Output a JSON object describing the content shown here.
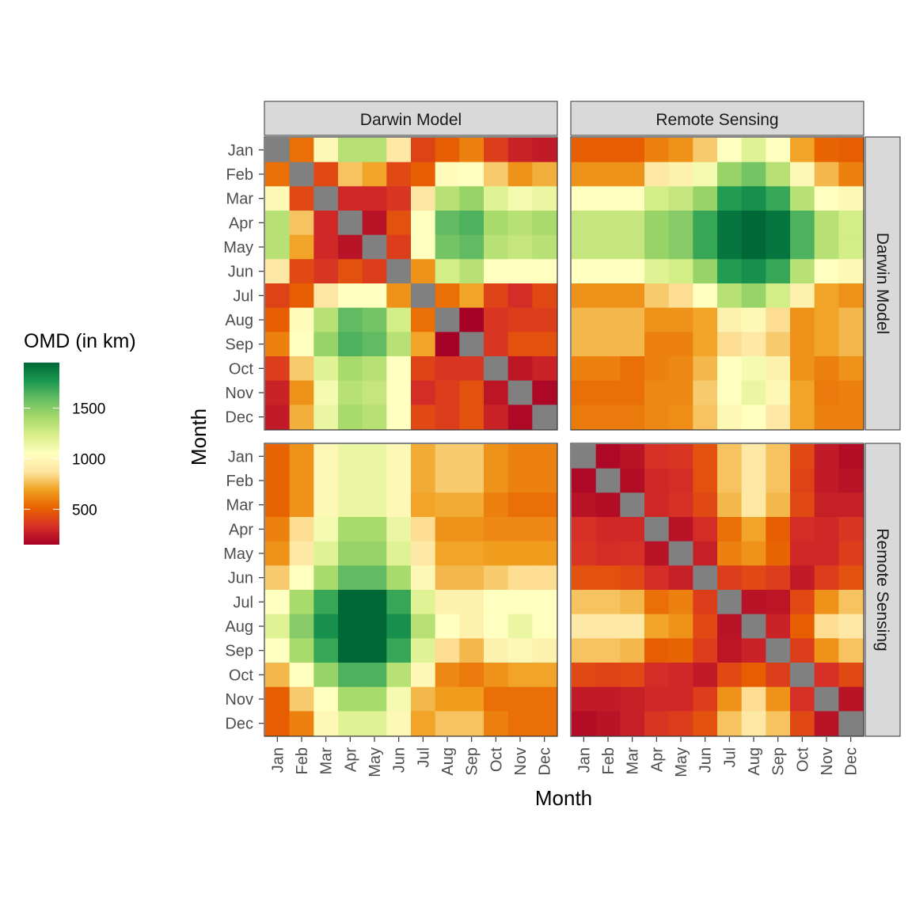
{
  "chart_data": {
    "type": "heatmap",
    "xlabel": "Month",
    "ylabel": "Month",
    "months": [
      "Jan",
      "Feb",
      "Mar",
      "Apr",
      "May",
      "Jun",
      "Jul",
      "Aug",
      "Sep",
      "Oct",
      "Nov",
      "Dec"
    ],
    "col_facets": [
      "Darwin Model",
      "Remote Sensing"
    ],
    "row_facets": [
      "Darwin Model",
      "Remote Sensing"
    ],
    "legend": {
      "title": "OMD (in km)",
      "breaks": [
        500,
        1000,
        1500
      ],
      "limits": [
        150,
        1950
      ],
      "colors": [
        "#a50026",
        "#d73027",
        "#e86100",
        "#f0a020",
        "#fde5a0",
        "#ffffbf",
        "#d9ef8b",
        "#a6d96a",
        "#66bd63",
        "#1a9850",
        "#006837"
      ],
      "placement": "left"
    },
    "missing_color": "#808080",
    "panels": [
      {
        "row": "Darwin Model",
        "col": "Darwin Model",
        "values": [
          [
            null,
            550,
            1000,
            1350,
            1350,
            900,
            400,
            500,
            600,
            380,
            280,
            250
          ],
          [
            550,
            null,
            420,
            780,
            700,
            420,
            500,
            1020,
            1050,
            800,
            650,
            730
          ],
          [
            1000,
            420,
            null,
            300,
            300,
            350,
            880,
            1350,
            1450,
            1200,
            1100,
            1150
          ],
          [
            1350,
            780,
            300,
            null,
            220,
            450,
            1050,
            1600,
            1650,
            1400,
            1350,
            1400
          ],
          [
            1350,
            700,
            300,
            220,
            null,
            380,
            1050,
            1550,
            1600,
            1350,
            1300,
            1350
          ],
          [
            900,
            420,
            350,
            450,
            380,
            null,
            650,
            1250,
            1350,
            1050,
            1050,
            1050
          ],
          [
            400,
            500,
            880,
            1050,
            1050,
            650,
            null,
            550,
            700,
            400,
            320,
            420
          ],
          [
            500,
            1020,
            1350,
            1600,
            1550,
            1250,
            550,
            null,
            150,
            350,
            380,
            380
          ],
          [
            600,
            1050,
            1450,
            1650,
            1600,
            1350,
            700,
            150,
            null,
            350,
            450,
            450
          ],
          [
            380,
            800,
            1200,
            1400,
            1350,
            1050,
            400,
            350,
            350,
            null,
            230,
            280
          ],
          [
            280,
            650,
            1100,
            1350,
            1300,
            1050,
            320,
            380,
            450,
            230,
            null,
            180
          ],
          [
            250,
            730,
            1150,
            1400,
            1350,
            1050,
            420,
            380,
            450,
            280,
            180,
            null
          ]
        ]
      },
      {
        "row": "Darwin Model",
        "col": "Remote Sensing",
        "values": [
          [
            500,
            500,
            500,
            600,
            650,
            800,
            1050,
            1200,
            1050,
            700,
            520,
            500
          ],
          [
            650,
            650,
            650,
            900,
            950,
            1100,
            1450,
            1550,
            1350,
            1000,
            750,
            600
          ],
          [
            1050,
            1050,
            1050,
            1250,
            1300,
            1450,
            1750,
            1800,
            1700,
            1350,
            1050,
            1000
          ],
          [
            1300,
            1300,
            1300,
            1450,
            1500,
            1700,
            1900,
            1950,
            1900,
            1650,
            1350,
            1250
          ],
          [
            1300,
            1300,
            1300,
            1450,
            1500,
            1700,
            1900,
            1950,
            1900,
            1650,
            1350,
            1250
          ],
          [
            1050,
            1050,
            1050,
            1200,
            1250,
            1450,
            1750,
            1800,
            1700,
            1350,
            1050,
            1000
          ],
          [
            650,
            650,
            650,
            800,
            850,
            1050,
            1350,
            1450,
            1250,
            950,
            700,
            650
          ],
          [
            750,
            750,
            750,
            650,
            650,
            700,
            950,
            1000,
            850,
            650,
            700,
            750
          ],
          [
            750,
            750,
            750,
            600,
            600,
            700,
            850,
            900,
            800,
            650,
            700,
            750
          ],
          [
            600,
            600,
            550,
            600,
            620,
            750,
            1050,
            1100,
            950,
            650,
            600,
            650
          ],
          [
            550,
            550,
            550,
            620,
            620,
            800,
            1050,
            1150,
            1000,
            700,
            580,
            600
          ],
          [
            580,
            580,
            580,
            620,
            640,
            780,
            1000,
            1050,
            900,
            700,
            600,
            600
          ]
        ]
      },
      {
        "row": "Remote Sensing",
        "col": "Darwin Model",
        "values": [
          [
            520,
            650,
            1000,
            1150,
            1150,
            1000,
            720,
            800,
            800,
            650,
            600,
            600
          ],
          [
            520,
            650,
            1000,
            1150,
            1150,
            1000,
            720,
            800,
            800,
            650,
            600,
            600
          ],
          [
            520,
            650,
            1000,
            1150,
            1150,
            1000,
            700,
            720,
            720,
            600,
            550,
            550
          ],
          [
            600,
            850,
            1100,
            1400,
            1400,
            1150,
            850,
            650,
            650,
            620,
            620,
            620
          ],
          [
            650,
            900,
            1200,
            1450,
            1450,
            1200,
            900,
            700,
            700,
            680,
            680,
            680
          ],
          [
            800,
            1050,
            1400,
            1600,
            1600,
            1400,
            1000,
            750,
            750,
            800,
            850,
            850
          ],
          [
            1050,
            1400,
            1700,
            1950,
            1950,
            1700,
            1200,
            950,
            950,
            1050,
            1050,
            1050
          ],
          [
            1200,
            1500,
            1800,
            2000,
            2000,
            1800,
            1350,
            1050,
            950,
            1050,
            1150,
            1050
          ],
          [
            1050,
            1400,
            1700,
            1950,
            1950,
            1700,
            1200,
            850,
            750,
            950,
            1000,
            950
          ],
          [
            750,
            1050,
            1450,
            1650,
            1650,
            1350,
            1000,
            620,
            580,
            650,
            700,
            700
          ],
          [
            500,
            800,
            1050,
            1400,
            1400,
            1100,
            750,
            680,
            680,
            550,
            550,
            550
          ],
          [
            500,
            600,
            1000,
            1200,
            1200,
            1000,
            700,
            780,
            780,
            600,
            550,
            550
          ]
        ]
      },
      {
        "row": "Remote Sensing",
        "col": "Remote Sensing",
        "values": [
          [
            null,
            180,
            220,
            330,
            350,
            450,
            780,
            900,
            780,
            420,
            250,
            200
          ],
          [
            180,
            null,
            200,
            300,
            320,
            450,
            780,
            900,
            780,
            400,
            250,
            220
          ],
          [
            220,
            200,
            null,
            300,
            330,
            420,
            750,
            900,
            750,
            420,
            270,
            270
          ],
          [
            330,
            300,
            300,
            null,
            220,
            320,
            550,
            700,
            500,
            320,
            300,
            350
          ],
          [
            350,
            320,
            330,
            220,
            null,
            270,
            600,
            650,
            520,
            300,
            300,
            380
          ],
          [
            450,
            450,
            420,
            320,
            270,
            null,
            380,
            420,
            380,
            250,
            380,
            450
          ],
          [
            780,
            780,
            750,
            550,
            600,
            380,
            null,
            220,
            230,
            420,
            650,
            780
          ],
          [
            900,
            900,
            900,
            700,
            650,
            420,
            220,
            null,
            280,
            500,
            850,
            900
          ],
          [
            780,
            780,
            750,
            500,
            520,
            380,
            230,
            280,
            null,
            380,
            650,
            780
          ],
          [
            420,
            400,
            420,
            320,
            300,
            250,
            420,
            500,
            380,
            null,
            330,
            420
          ],
          [
            250,
            250,
            270,
            300,
            300,
            380,
            650,
            850,
            650,
            330,
            null,
            220
          ],
          [
            200,
            220,
            270,
            350,
            380,
            450,
            780,
            900,
            780,
            420,
            220,
            null
          ]
        ]
      }
    ]
  }
}
